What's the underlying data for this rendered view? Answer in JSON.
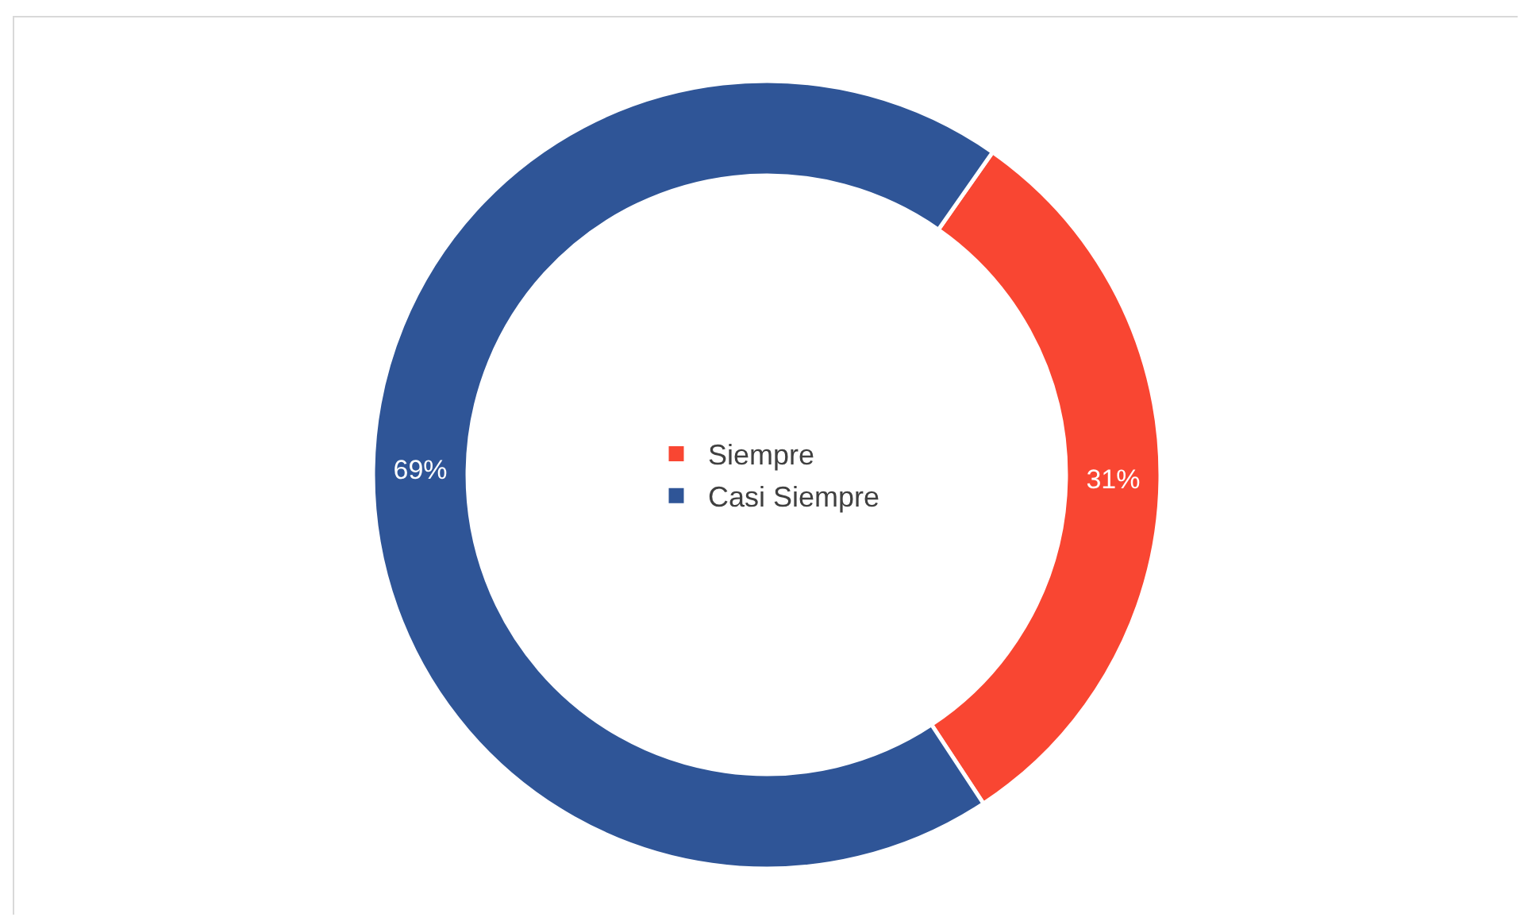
{
  "chart_data": {
    "type": "donut",
    "categories": [
      "Siempre",
      "Casi Siempre"
    ],
    "values": [
      31,
      69
    ],
    "colors": [
      "#f94632",
      "#2f5597"
    ],
    "value_labels": [
      "31%",
      "69%"
    ],
    "legend": "center"
  }
}
